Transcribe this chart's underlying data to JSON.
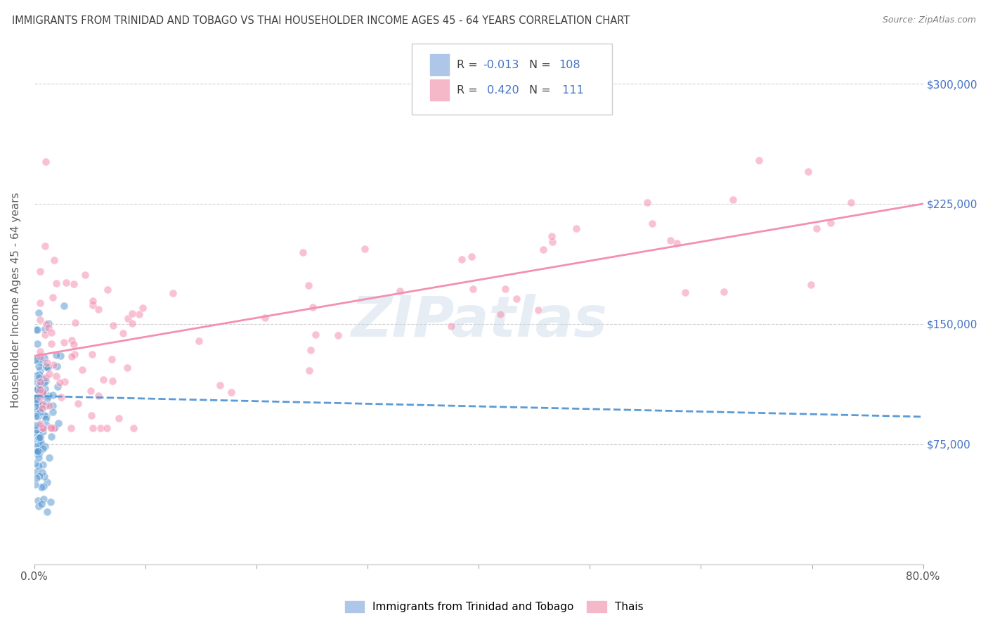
{
  "title": "IMMIGRANTS FROM TRINIDAD AND TOBAGO VS THAI HOUSEHOLDER INCOME AGES 45 - 64 YEARS CORRELATION CHART",
  "source": "Source: ZipAtlas.com",
  "ylabel_label": "Householder Income Ages 45 - 64 years",
  "ylabel_ticks": [
    "$75,000",
    "$150,000",
    "$225,000",
    "$300,000"
  ],
  "ylabel_values": [
    75000,
    150000,
    225000,
    300000
  ],
  "xmin": 0.0,
  "xmax": 0.8,
  "ymin": 0,
  "ymax": 330000,
  "trinidad_color": "#5b9bd5",
  "thai_color": "#f48fb1",
  "trinidad_line_color": "#5b9bd5",
  "thai_line_color": "#f48fb1",
  "bg_color": "#ffffff",
  "grid_color": "#cccccc",
  "watermark": "ZIPatlas",
  "watermark_color": "#c8d8e8",
  "title_color": "#404040",
  "source_color": "#808080",
  "legend_blue_color": "#aec6e8",
  "legend_pink_color": "#f4b8c8",
  "legend_text_color": "#404040",
  "legend_value_color": "#4472c4",
  "R_trin": -0.013,
  "N_trin": 108,
  "R_thai": 0.42,
  "N_thai": 111
}
